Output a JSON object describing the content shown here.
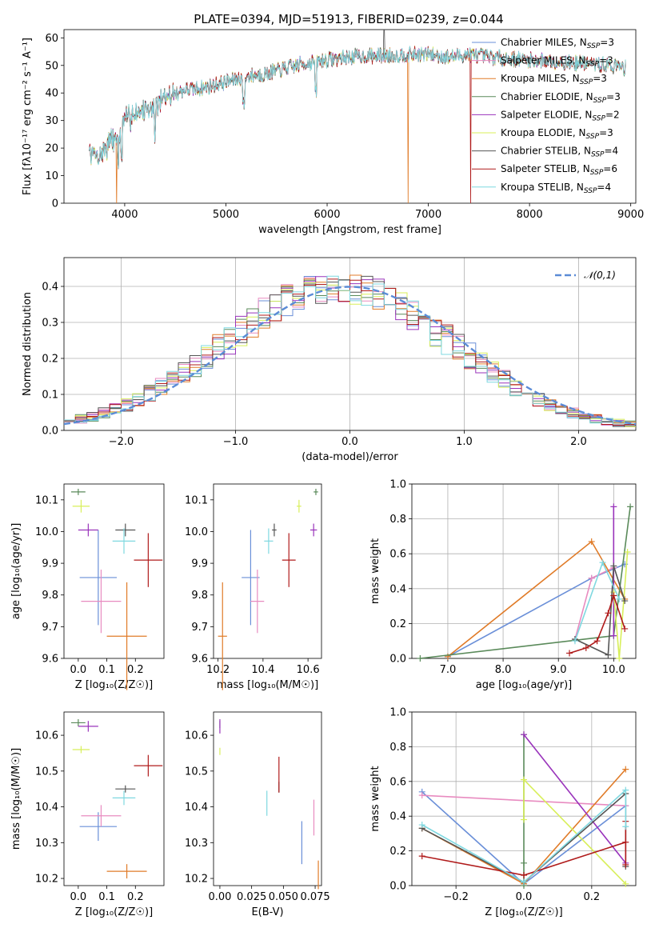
{
  "colors": {
    "Chabrier MILES": "#6a8fd8",
    "Salpeter MILES": "#e88bc0",
    "Kroupa MILES": "#e07b28",
    "Chabrier ELODIE": "#5a8a5a",
    "Salpeter ELODIE": "#9933bb",
    "Kroupa ELODIE": "#d8ef5a",
    "Chabrier STELIB": "#555555",
    "Salpeter STELIB": "#b01b1b",
    "Kroupa STELIB": "#7fd8e0"
  },
  "chart_data": [
    {
      "type": "line",
      "title": "PLATE=0394, MJD=51913, FIBERID=0239, z=0.044",
      "xlabel": "wavelength [Angstrom, rest frame]",
      "ylabel": "Flux [fλ10⁻¹⁷ erg cm⁻² s⁻¹ A⁻¹]",
      "xlim": [
        3400,
        9050
      ],
      "ylim": [
        0,
        63
      ],
      "xticks": [
        4000,
        5000,
        6000,
        7000,
        8000,
        9000
      ],
      "yticks": [
        0,
        10,
        20,
        30,
        40,
        50,
        60
      ],
      "legend": {
        "placement": "top-right",
        "entries": [
          {
            "model": "Chabrier MILES",
            "label": "Chabrier MILES, N",
            "sub": "SSP",
            "suffix": "=3"
          },
          {
            "model": "Salpeter MILES",
            "label": "Salpeter MILES, N",
            "sub": "SSP",
            "suffix": "=3"
          },
          {
            "model": "Kroupa MILES",
            "label": "Kroupa MILES, N",
            "sub": "SSP",
            "suffix": "=3"
          },
          {
            "model": "Chabrier ELODIE",
            "label": "Chabrier ELODIE, N",
            "sub": "SSP",
            "suffix": "=3"
          },
          {
            "model": "Salpeter ELODIE",
            "label": "Salpeter ELODIE, N",
            "sub": "SSP",
            "suffix": "=2"
          },
          {
            "model": "Kroupa ELODIE",
            "label": "Kroupa ELODIE, N",
            "sub": "SSP",
            "suffix": "=3"
          },
          {
            "model": "Chabrier STELIB",
            "label": "Chabrier STELIB, N",
            "sub": "SSP",
            "suffix": "=4"
          },
          {
            "model": "Salpeter STELIB",
            "label": "Salpeter STELIB, N",
            "sub": "SSP",
            "suffix": "=6"
          },
          {
            "model": "Kroupa STELIB",
            "label": "Kroupa STELIB, N",
            "sub": "SSP",
            "suffix": "=4"
          }
        ]
      },
      "continuum": [
        [
          3650,
          18
        ],
        [
          3750,
          17
        ],
        [
          3850,
          22
        ],
        [
          3950,
          25
        ],
        [
          4000,
          30
        ],
        [
          4100,
          33
        ],
        [
          4200,
          34
        ],
        [
          4300,
          35
        ],
        [
          4400,
          38
        ],
        [
          4500,
          40
        ],
        [
          4600,
          41
        ],
        [
          4700,
          41.5
        ],
        [
          4800,
          42
        ],
        [
          4900,
          43
        ],
        [
          5000,
          44
        ],
        [
          5100,
          45
        ],
        [
          5200,
          46
        ],
        [
          5300,
          46.5
        ],
        [
          5400,
          47
        ],
        [
          5500,
          48
        ],
        [
          5600,
          49
        ],
        [
          5700,
          50
        ],
        [
          5800,
          51
        ],
        [
          5900,
          51.5
        ],
        [
          6000,
          52
        ],
        [
          6200,
          53
        ],
        [
          6400,
          53.5
        ],
        [
          6600,
          53.5
        ],
        [
          6800,
          54
        ],
        [
          7000,
          54
        ],
        [
          7200,
          53
        ],
        [
          7400,
          54
        ],
        [
          7600,
          53
        ],
        [
          8000,
          52
        ],
        [
          8400,
          51
        ],
        [
          8800,
          50
        ],
        [
          8950,
          49
        ]
      ],
      "drops": [
        {
          "model": "Kroupa MILES",
          "x": 3920
        },
        {
          "model": "Kroupa MILES",
          "x": 6800
        },
        {
          "model": "Salpeter STELIB",
          "x": 7420
        }
      ],
      "spike": {
        "model": "Chabrier STELIB",
        "x": 6563,
        "y": 63
      }
    },
    {
      "type": "step",
      "xlabel": "(data-model)/error",
      "ylabel": "Normed distribution",
      "xlim": [
        -2.5,
        2.5
      ],
      "ylim": [
        0,
        0.48
      ],
      "xticks": [
        -2,
        -1,
        0,
        1,
        2
      ],
      "yticks": [
        0.0,
        0.1,
        0.2,
        0.3,
        0.4
      ],
      "grid": true,
      "legend": {
        "placement": "top-right",
        "label": "𝒩(0,1)"
      },
      "bins": {
        "start": -2.5,
        "width": 0.1,
        "count": 50
      },
      "reference": "N(0,1)"
    },
    {
      "type": "scatter",
      "xlabel": "Z [log₁₀(Z/Z☉)]",
      "ylabel": "age  [log₁₀(age/yr)]",
      "xlim": [
        -0.05,
        0.3
      ],
      "ylim": [
        9.6,
        10.15
      ],
      "xticks": [
        0.0,
        0.1,
        0.2
      ],
      "yticks": [
        9.6,
        9.7,
        9.8,
        9.9,
        10.0,
        10.1
      ],
      "points": [
        {
          "model": "Chabrier MILES",
          "x": 0.07,
          "y": 9.855,
          "xerr": 0.065,
          "yerr": 0.15
        },
        {
          "model": "Salpeter MILES",
          "x": 0.08,
          "y": 9.78,
          "xerr": 0.07,
          "yerr": 0.1
        },
        {
          "model": "Kroupa MILES",
          "x": 0.17,
          "y": 9.67,
          "xerr": 0.07,
          "yerr": 0.17
        },
        {
          "model": "Chabrier ELODIE",
          "x": 0.0,
          "y": 10.125,
          "xerr": 0.025,
          "yerr": 0.01
        },
        {
          "model": "Salpeter ELODIE",
          "x": 0.035,
          "y": 10.005,
          "xerr": 0.035,
          "yerr": 0.02
        },
        {
          "model": "Kroupa ELODIE",
          "x": 0.01,
          "y": 10.08,
          "xerr": 0.03,
          "yerr": 0.02
        },
        {
          "model": "Chabrier STELIB",
          "x": 0.165,
          "y": 10.005,
          "xerr": 0.035,
          "yerr": 0.02
        },
        {
          "model": "Salpeter STELIB",
          "x": 0.245,
          "y": 9.91,
          "xerr": 0.05,
          "yerr": 0.085
        },
        {
          "model": "Kroupa STELIB",
          "x": 0.16,
          "y": 9.97,
          "xerr": 0.04,
          "yerr": 0.04
        }
      ]
    },
    {
      "type": "scatter",
      "xlabel": "mass [log₁₀(M/M☉)]",
      "ylabel": "",
      "xlim": [
        10.18,
        10.66
      ],
      "ylim": [
        9.6,
        10.15
      ],
      "xticks": [
        10.2,
        10.4,
        10.6
      ],
      "yticks": [
        9.6,
        9.7,
        9.8,
        9.9,
        10.0,
        10.1
      ],
      "points": [
        {
          "model": "Chabrier MILES",
          "x": 10.345,
          "y": 9.855,
          "xerr": 0.04,
          "yerr": 0.15
        },
        {
          "model": "Salpeter MILES",
          "x": 10.375,
          "y": 9.78,
          "xerr": 0.03,
          "yerr": 0.1
        },
        {
          "model": "Kroupa MILES",
          "x": 10.22,
          "y": 9.67,
          "xerr": 0.02,
          "yerr": 0.17
        },
        {
          "model": "Chabrier ELODIE",
          "x": 10.635,
          "y": 10.125,
          "xerr": 0.01,
          "yerr": 0.01
        },
        {
          "model": "Salpeter ELODIE",
          "x": 10.625,
          "y": 10.005,
          "xerr": 0.015,
          "yerr": 0.02
        },
        {
          "model": "Kroupa ELODIE",
          "x": 10.56,
          "y": 10.08,
          "xerr": 0.01,
          "yerr": 0.02
        },
        {
          "model": "Chabrier STELIB",
          "x": 10.45,
          "y": 10.005,
          "xerr": 0.01,
          "yerr": 0.02
        },
        {
          "model": "Salpeter STELIB",
          "x": 10.515,
          "y": 9.91,
          "xerr": 0.03,
          "yerr": 0.085
        },
        {
          "model": "Kroupa STELIB",
          "x": 10.425,
          "y": 9.97,
          "xerr": 0.02,
          "yerr": 0.04
        }
      ]
    },
    {
      "type": "line",
      "xlabel": "age  [log₁₀(age/yr)]",
      "ylabel": "mass weight",
      "xlim": [
        6.35,
        10.4
      ],
      "ylim": [
        0,
        1.0
      ],
      "xticks": [
        7,
        8,
        9,
        10
      ],
      "yticks": [
        0.0,
        0.2,
        0.4,
        0.6,
        0.8,
        1.0
      ],
      "grid": true,
      "series": [
        {
          "model": "Chabrier MILES",
          "x": [
            7.0,
            9.6,
            10.2
          ],
          "y": [
            0.01,
            0.46,
            0.54
          ]
        },
        {
          "model": "Salpeter MILES",
          "x": [
            9.3,
            9.6,
            10.0
          ],
          "y": [
            0.11,
            0.46,
            0.52
          ]
        },
        {
          "model": "Kroupa MILES",
          "x": [
            7.0,
            9.6,
            10.2
          ],
          "y": [
            0.01,
            0.67,
            0.34
          ]
        },
        {
          "model": "Chabrier ELODIE",
          "x": [
            6.5,
            10.0,
            10.3
          ],
          "y": [
            0.0,
            0.13,
            0.87
          ]
        },
        {
          "model": "Salpeter ELODIE",
          "x": [
            10.0,
            10.0
          ],
          "y": [
            0.13,
            0.87
          ]
        },
        {
          "model": "Kroupa ELODIE",
          "x": [
            10.0,
            10.1,
            10.25
          ],
          "y": [
            0.38,
            0.0,
            0.61
          ]
        },
        {
          "model": "Chabrier STELIB",
          "x": [
            9.3,
            9.9,
            10.0,
            10.2
          ],
          "y": [
            0.11,
            0.02,
            0.53,
            0.33
          ]
        },
        {
          "model": "Salpeter STELIB",
          "x": [
            9.2,
            9.5,
            9.7,
            9.9,
            10.0,
            10.2
          ],
          "y": [
            0.03,
            0.06,
            0.1,
            0.26,
            0.36,
            0.17
          ]
        },
        {
          "model": "Kroupa STELIB",
          "x": [
            9.3,
            9.8,
            10.1
          ],
          "y": [
            0.1,
            0.55,
            0.34
          ]
        }
      ]
    },
    {
      "type": "scatter",
      "xlabel": "Z [log₁₀(Z/Z☉)]",
      "ylabel": "mass [log₁₀(M/M☉)]",
      "xlim": [
        -0.05,
        0.3
      ],
      "ylim": [
        10.18,
        10.665
      ],
      "xticks": [
        0.0,
        0.1,
        0.2
      ],
      "yticks": [
        10.2,
        10.3,
        10.4,
        10.5,
        10.6
      ],
      "points": [
        {
          "model": "Chabrier MILES",
          "x": 0.07,
          "y": 10.345,
          "xerr": 0.065,
          "yerr": 0.04
        },
        {
          "model": "Salpeter MILES",
          "x": 0.08,
          "y": 10.375,
          "xerr": 0.07,
          "yerr": 0.03
        },
        {
          "model": "Kroupa MILES",
          "x": 0.17,
          "y": 10.22,
          "xerr": 0.07,
          "yerr": 0.02
        },
        {
          "model": "Chabrier ELODIE",
          "x": 0.0,
          "y": 10.635,
          "xerr": 0.025,
          "yerr": 0.01
        },
        {
          "model": "Salpeter ELODIE",
          "x": 0.035,
          "y": 10.625,
          "xerr": 0.035,
          "yerr": 0.015
        },
        {
          "model": "Kroupa ELODIE",
          "x": 0.01,
          "y": 10.56,
          "xerr": 0.03,
          "yerr": 0.01
        },
        {
          "model": "Chabrier STELIB",
          "x": 0.165,
          "y": 10.45,
          "xerr": 0.035,
          "yerr": 0.01
        },
        {
          "model": "Salpeter STELIB",
          "x": 0.245,
          "y": 10.515,
          "xerr": 0.05,
          "yerr": 0.03
        },
        {
          "model": "Kroupa STELIB",
          "x": 0.16,
          "y": 10.425,
          "xerr": 0.04,
          "yerr": 0.02
        }
      ]
    },
    {
      "type": "scatter",
      "xlabel": "E(B-V)",
      "ylabel": "",
      "xlim": [
        -0.005,
        0.08
      ],
      "ylim": [
        10.18,
        10.665
      ],
      "xticks": [
        0.0,
        0.025,
        0.05,
        0.075
      ],
      "xticklabels": [
        "0.00",
        "0.025",
        "0.050",
        "0.075"
      ],
      "yticks": [
        10.2,
        10.3,
        10.4,
        10.5,
        10.6
      ],
      "points": [
        {
          "model": "Chabrier MILES",
          "x": 0.0645,
          "y": 10.3,
          "xerr": 0,
          "yerr": 0.06
        },
        {
          "model": "Salpeter MILES",
          "x": 0.074,
          "y": 10.37,
          "xerr": 0,
          "yerr": 0.05
        },
        {
          "model": "Kroupa MILES",
          "x": 0.0775,
          "y": 10.21,
          "xerr": 0,
          "yerr": 0.04
        },
        {
          "model": "Chabrier ELODIE",
          "x": 0.0,
          "y": 10.63,
          "xerr": 0,
          "yerr": 0.01
        },
        {
          "model": "Salpeter ELODIE",
          "x": 0.0,
          "y": 10.625,
          "xerr": 0,
          "yerr": 0.02
        },
        {
          "model": "Kroupa ELODIE",
          "x": 0.0,
          "y": 10.555,
          "xerr": 0,
          "yerr": 0.01
        },
        {
          "model": "Chabrier STELIB",
          "x": 0.0465,
          "y": 10.455,
          "xerr": 0,
          "yerr": 0.015
        },
        {
          "model": "Salpeter STELIB",
          "x": 0.0465,
          "y": 10.49,
          "xerr": 0,
          "yerr": 0.05
        },
        {
          "model": "Kroupa STELIB",
          "x": 0.037,
          "y": 10.41,
          "xerr": 0,
          "yerr": 0.035
        }
      ]
    },
    {
      "type": "line",
      "xlabel": "Z [log₁₀(Z/Z☉)]",
      "ylabel": "mass weight",
      "xlim": [
        -0.33,
        0.33
      ],
      "ylim": [
        0,
        1.0
      ],
      "xticks": [
        -0.2,
        0.0,
        0.2
      ],
      "yticks": [
        0.0,
        0.2,
        0.4,
        0.6,
        0.8,
        1.0
      ],
      "grid": true,
      "series": [
        {
          "model": "Chabrier MILES",
          "x": [
            -0.3,
            0.0,
            0.3
          ],
          "y": [
            0.54,
            0.01,
            0.46
          ]
        },
        {
          "model": "Salpeter MILES",
          "x": [
            -0.3,
            0.3
          ],
          "y": [
            0.52,
            0.46
          ]
        },
        {
          "model": "Kroupa MILES",
          "x": [
            -0.3,
            0.0,
            0.3
          ],
          "y": [
            0.33,
            0.01,
            0.67
          ]
        },
        {
          "model": "Chabrier ELODIE",
          "x": [
            0.0,
            0.0,
            0.0
          ],
          "y": [
            0.0,
            0.13,
            0.87
          ]
        },
        {
          "model": "Salpeter ELODIE",
          "x": [
            0.0,
            0.3
          ],
          "y": [
            0.87,
            0.13
          ]
        },
        {
          "model": "Kroupa ELODIE",
          "x": [
            0.0,
            0.0,
            0.3
          ],
          "y": [
            0.38,
            0.61,
            0.01
          ]
        },
        {
          "model": "Chabrier STELIB",
          "x": [
            -0.3,
            0.0,
            0.3,
            0.3
          ],
          "y": [
            0.33,
            0.02,
            0.53,
            0.11
          ]
        },
        {
          "model": "Salpeter STELIB",
          "x": [
            -0.3,
            0.0,
            0.3,
            0.3,
            0.3
          ],
          "y": [
            0.17,
            0.06,
            0.25,
            0.37,
            0.12
          ]
        },
        {
          "model": "Kroupa STELIB",
          "x": [
            -0.3,
            0.0,
            0.3,
            0.3
          ],
          "y": [
            0.35,
            0.02,
            0.55,
            0.34
          ]
        }
      ]
    }
  ]
}
